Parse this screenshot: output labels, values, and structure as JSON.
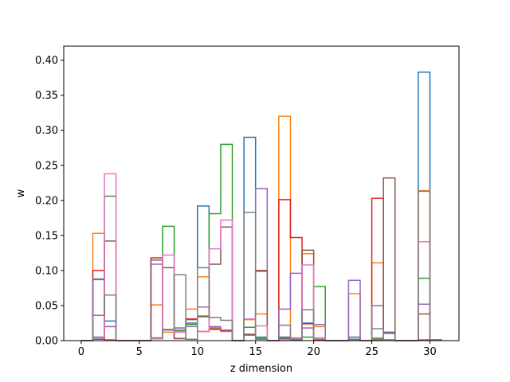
{
  "chart_data": {
    "type": "bar",
    "style": "stacked step histogram",
    "xlabel": "z dimension",
    "ylabel": "w",
    "xlim": [
      -1.5,
      32.5
    ],
    "ylim": [
      0,
      0.42
    ],
    "xticks": [
      0,
      5,
      10,
      15,
      20,
      25,
      30
    ],
    "yticks": [
      0.0,
      0.05,
      0.1,
      0.15,
      0.2,
      0.25,
      0.3,
      0.35,
      0.4
    ],
    "bin_edges": [
      0,
      1,
      2,
      3,
      4,
      5,
      6,
      7,
      8,
      9,
      10,
      11,
      12,
      13,
      14,
      15,
      16,
      17,
      18,
      19,
      20,
      21,
      22,
      23,
      24,
      25,
      26,
      27,
      28,
      29,
      30,
      31
    ],
    "series": [
      {
        "color": "#1f77b4",
        "cumulative": [
          0,
          0.002,
          0.028,
          0,
          0,
          0,
          0.003,
          0.015,
          0.018,
          0.025,
          0.192,
          0.018,
          0.015,
          0,
          0.29,
          0.005,
          0,
          0.005,
          0.001,
          0.025,
          0.002,
          0,
          0,
          0.005,
          0,
          0.003,
          0.012,
          0,
          0,
          0.383,
          0.001
        ]
      },
      {
        "color": "#ff7f0e",
        "cumulative": [
          0,
          0.153,
          0.02,
          0,
          0,
          0,
          0.051,
          0.012,
          0.015,
          0.045,
          0.091,
          0.017,
          0.013,
          0,
          0.03,
          0.038,
          0,
          0.32,
          0.004,
          0.124,
          0.02,
          0,
          0,
          0.067,
          0,
          0.111,
          0.01,
          0,
          0,
          0.214,
          0.001
        ]
      },
      {
        "color": "#2ca02c",
        "cumulative": [
          0,
          0.087,
          0.206,
          0,
          0,
          0,
          0.003,
          0.163,
          0.014,
          0.023,
          0.035,
          0.181,
          0.28,
          0,
          0.019,
          0.003,
          0,
          0.003,
          0.003,
          0.005,
          0.077,
          0,
          0,
          0.001,
          0,
          0.003,
          0.001,
          0,
          0,
          0.089,
          0.001
        ]
      },
      {
        "color": "#d62728",
        "cumulative": [
          0,
          0.1,
          0.001,
          0,
          0,
          0,
          0.118,
          0.015,
          0.003,
          0.031,
          0.013,
          0.016,
          0.014,
          0,
          0.008,
          0.099,
          0,
          0.201,
          0.147,
          0.024,
          0.001,
          0,
          0,
          0.002,
          0,
          0.203,
          0.001,
          0,
          0,
          0.001,
          0.001
        ]
      },
      {
        "color": "#9467bd",
        "cumulative": [
          0,
          0.088,
          0.02,
          0,
          0,
          0,
          0.109,
          0.015,
          0.018,
          0.02,
          0.048,
          0.02,
          0.015,
          0,
          0.009,
          0.217,
          0,
          0.045,
          0.096,
          0.018,
          0.023,
          0,
          0,
          0.086,
          0,
          0.05,
          0.011,
          0,
          0,
          0.052,
          0.001
        ]
      },
      {
        "color": "#8c564b",
        "cumulative": [
          0,
          0.005,
          0.142,
          0,
          0,
          0,
          0.115,
          0.104,
          0.003,
          0.03,
          0.034,
          0.109,
          0.162,
          0,
          0.009,
          0.1,
          0,
          0.003,
          0.002,
          0.129,
          0.002,
          0,
          0,
          0.002,
          0,
          0.001,
          0.232,
          0,
          0,
          0.038,
          0.001
        ]
      },
      {
        "color": "#e377c2",
        "cumulative": [
          0,
          0.004,
          0.238,
          0,
          0,
          0,
          0.003,
          0.122,
          0.012,
          0.002,
          0.013,
          0.131,
          0.172,
          0,
          0.031,
          0.021,
          0,
          0.001,
          0.003,
          0.108,
          0.004,
          0,
          0,
          0.001,
          0,
          0.004,
          0.001,
          0,
          0,
          0.141,
          0.001
        ]
      },
      {
        "color": "#7f7f7f",
        "cumulative": [
          0,
          0.036,
          0.065,
          0,
          0,
          0,
          0.004,
          0.016,
          0.094,
          0.002,
          0.104,
          0.033,
          0.029,
          0,
          0.183,
          0.002,
          0,
          0.022,
          0.002,
          0.044,
          0.002,
          0,
          0,
          0.001,
          0,
          0.017,
          0.001,
          0,
          0,
          0.213,
          0.001
        ]
      }
    ]
  }
}
